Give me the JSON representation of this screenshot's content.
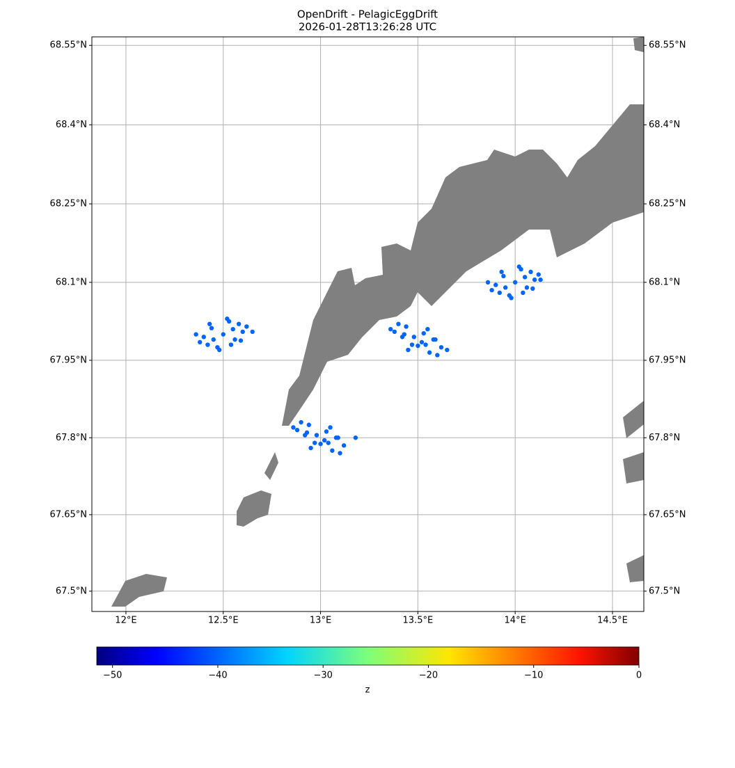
{
  "chart_data": {
    "type": "scatter",
    "title": "OpenDrift - PelagicEggDrift",
    "subtitle": "2026-01-28T13:26:28 UTC",
    "projection": "mercator",
    "grid": true,
    "color": "#0064ff",
    "x": [
      12.5,
      12.55,
      12.45,
      12.58,
      12.42,
      12.53,
      12.47,
      12.6,
      12.4,
      12.62,
      12.38,
      12.52,
      12.48,
      12.56,
      12.44,
      12.65,
      12.36,
      12.54,
      12.43,
      12.59,
      13.5,
      13.55,
      13.45,
      13.58,
      13.42,
      13.53,
      13.47,
      13.6,
      13.4,
      13.62,
      13.38,
      13.52,
      13.48,
      13.56,
      13.44,
      13.65,
      13.36,
      13.54,
      13.43,
      13.59,
      14.0,
      14.05,
      13.95,
      14.08,
      13.92,
      14.03,
      13.97,
      14.1,
      13.9,
      14.12,
      13.88,
      14.02,
      13.98,
      14.06,
      13.94,
      14.13,
      13.86,
      14.04,
      13.93,
      14.09,
      13.0,
      13.05,
      12.95,
      13.08,
      12.92,
      13.03,
      12.97,
      13.1,
      12.9,
      13.12,
      12.88,
      13.02,
      12.98,
      13.06,
      12.94,
      13.18,
      12.86,
      13.04,
      12.93,
      13.09
    ],
    "y": [
      68.0,
      68.01,
      67.99,
      68.02,
      67.98,
      68.025,
      67.975,
      68.005,
      67.995,
      68.015,
      67.985,
      68.03,
      67.97,
      67.99,
      68.012,
      68.005,
      68.0,
      67.98,
      68.02,
      67.988,
      67.978,
      68.01,
      67.97,
      67.99,
      67.995,
      68.002,
      67.98,
      67.96,
      68.02,
      67.975,
      68.005,
      67.985,
      67.995,
      67.965,
      68.015,
      67.97,
      68.01,
      67.98,
      68.0,
      67.99,
      68.1,
      68.11,
      68.09,
      68.12,
      68.08,
      68.125,
      68.075,
      68.105,
      68.095,
      68.115,
      68.085,
      68.13,
      68.07,
      68.09,
      68.112,
      68.105,
      68.1,
      68.08,
      68.12,
      68.088,
      67.788,
      67.82,
      67.78,
      67.8,
      67.805,
      67.812,
      67.79,
      67.77,
      67.83,
      67.785,
      67.815,
      67.795,
      67.805,
      67.775,
      67.825,
      67.8,
      67.82,
      67.79,
      67.81,
      67.8
    ],
    "xlim": [
      11.825,
      14.661
    ],
    "ylim": [
      67.46,
      68.566
    ],
    "xticks": [
      {
        "value": 12,
        "label": "12°E"
      },
      {
        "value": 12.5,
        "label": "12.5°E"
      },
      {
        "value": 13,
        "label": "13°E"
      },
      {
        "value": 13.5,
        "label": "13.5°E"
      },
      {
        "value": 14,
        "label": "14°E"
      },
      {
        "value": 14.5,
        "label": "14.5°E"
      }
    ],
    "yticks": [
      {
        "value": 67.5,
        "label": "67.5°N"
      },
      {
        "value": 67.65,
        "label": "67.65°N"
      },
      {
        "value": 67.8,
        "label": "67.8°N"
      },
      {
        "value": 67.95,
        "label": "67.95°N"
      },
      {
        "value": 68.1,
        "label": "68.1°N"
      },
      {
        "value": 68.25,
        "label": "68.25°N"
      },
      {
        "value": 68.4,
        "label": "68.4°N"
      },
      {
        "value": 68.55,
        "label": "68.55°N"
      }
    ],
    "colorbar": {
      "label": "z",
      "colormap": "jet",
      "lim": [
        -51.5,
        0
      ],
      "ticks": [
        {
          "value": -50,
          "label": "−50"
        },
        {
          "value": -40,
          "label": "−40"
        },
        {
          "value": -30,
          "label": "−30"
        },
        {
          "value": -20,
          "label": "−20"
        },
        {
          "value": -10,
          "label": "−10"
        },
        0
      ]
    }
  }
}
